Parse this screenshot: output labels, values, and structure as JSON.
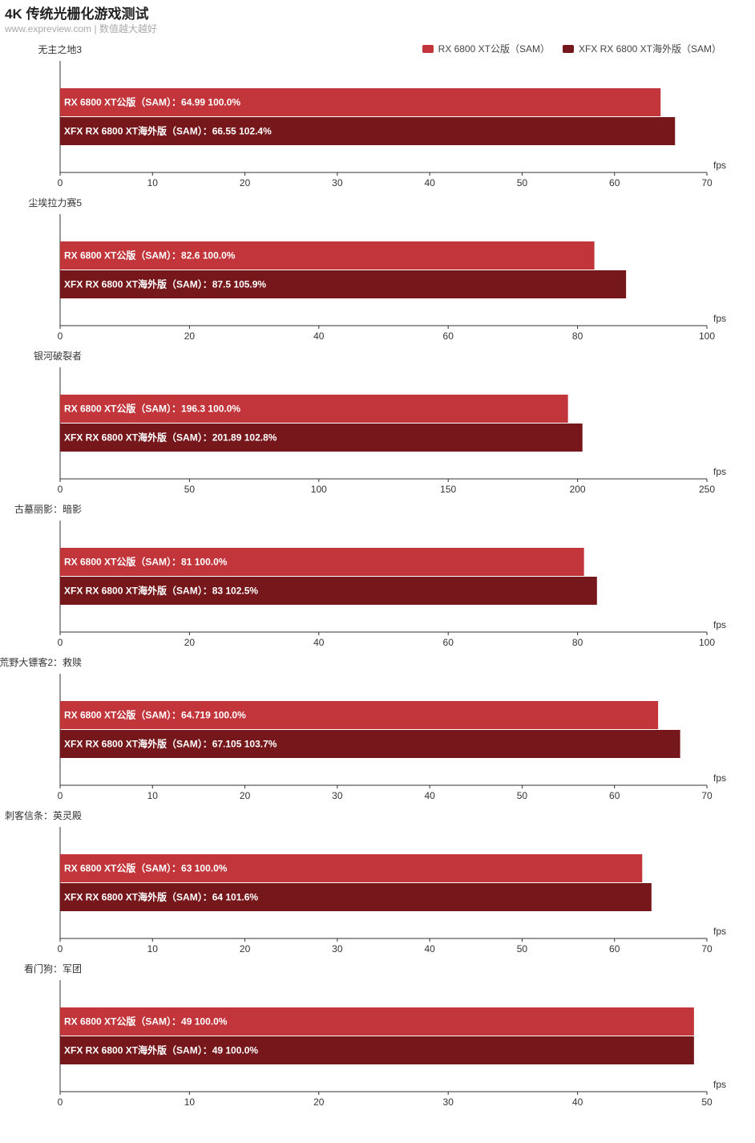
{
  "header": {
    "title": "4K 传统光栅化游戏测试",
    "subtitle": "www.expreview.com | 数值越大越好"
  },
  "legend": [
    {
      "label": "RX 6800 XT公版（SAM）",
      "color": "#c1353b"
    },
    {
      "label": "XFX RX 6800 XT海外版（SAM）",
      "color": "#76171b"
    }
  ],
  "chart_data": [
    {
      "type": "bar",
      "title": "无主之地3",
      "unit": "fps",
      "xlim": [
        0,
        70
      ],
      "ticks": [
        0,
        10,
        20,
        30,
        40,
        50,
        60,
        70
      ],
      "series": [
        {
          "name": "RX 6800 XT公版（SAM）",
          "value": 64.99,
          "label": "RX 6800 XT公版（SAM）：64.99  100.0%"
        },
        {
          "name": "XFX RX 6800 XT海外版（SAM）",
          "value": 66.55,
          "label": "XFX RX 6800 XT海外版（SAM）：66.55  102.4%"
        }
      ]
    },
    {
      "type": "bar",
      "title": "尘埃拉力赛5",
      "unit": "fps",
      "xlim": [
        0,
        100
      ],
      "ticks": [
        0,
        20,
        40,
        60,
        80,
        100
      ],
      "series": [
        {
          "name": "RX 6800 XT公版（SAM）",
          "value": 82.6,
          "label": "RX 6800 XT公版（SAM）：82.6  100.0%"
        },
        {
          "name": "XFX RX 6800 XT海外版（SAM）",
          "value": 87.5,
          "label": "XFX RX 6800 XT海外版（SAM）：87.5  105.9%"
        }
      ]
    },
    {
      "type": "bar",
      "title": "银河破裂者",
      "unit": "fps",
      "xlim": [
        0,
        250
      ],
      "ticks": [
        0,
        50,
        100,
        150,
        200,
        250
      ],
      "series": [
        {
          "name": "RX 6800 XT公版（SAM）",
          "value": 196.3,
          "label": "RX 6800 XT公版（SAM）：196.3  100.0%"
        },
        {
          "name": "XFX RX 6800 XT海外版（SAM）",
          "value": 201.89,
          "label": "XFX RX 6800 XT海外版（SAM）：201.89  102.8%"
        }
      ]
    },
    {
      "type": "bar",
      "title": "古墓丽影：暗影",
      "unit": "fps",
      "xlim": [
        0,
        100
      ],
      "ticks": [
        0,
        20,
        40,
        60,
        80,
        100
      ],
      "series": [
        {
          "name": "RX 6800 XT公版（SAM）",
          "value": 81,
          "label": "RX 6800 XT公版（SAM）：81  100.0%"
        },
        {
          "name": "XFX RX 6800 XT海外版（SAM）",
          "value": 83,
          "label": "XFX RX 6800 XT海外版（SAM）：83  102.5%"
        }
      ]
    },
    {
      "type": "bar",
      "title": "荒野大镖客2：救赎",
      "unit": "fps",
      "xlim": [
        0,
        70
      ],
      "ticks": [
        0,
        10,
        20,
        30,
        40,
        50,
        60,
        70
      ],
      "series": [
        {
          "name": "RX 6800 XT公版（SAM）",
          "value": 64.719,
          "label": "RX 6800 XT公版（SAM）：64.719  100.0%"
        },
        {
          "name": "XFX RX 6800 XT海外版（SAM）",
          "value": 67.105,
          "label": "XFX RX 6800 XT海外版（SAM）：67.105  103.7%"
        }
      ]
    },
    {
      "type": "bar",
      "title": "刺客信条：英灵殿",
      "unit": "fps",
      "xlim": [
        0,
        70
      ],
      "ticks": [
        0,
        10,
        20,
        30,
        40,
        50,
        60,
        70
      ],
      "series": [
        {
          "name": "RX 6800 XT公版（SAM）",
          "value": 63,
          "label": "RX 6800 XT公版（SAM）：63  100.0%"
        },
        {
          "name": "XFX RX 6800 XT海外版（SAM）",
          "value": 64,
          "label": "XFX RX 6800 XT海外版（SAM）：64  101.6%"
        }
      ]
    },
    {
      "type": "bar",
      "title": "看门狗：军团",
      "unit": "fps",
      "xlim": [
        0,
        50
      ],
      "ticks": [
        0,
        10,
        20,
        30,
        40,
        50
      ],
      "series": [
        {
          "name": "RX 6800 XT公版（SAM）",
          "value": 49,
          "label": "RX 6800 XT公版（SAM）：49  100.0%"
        },
        {
          "name": "XFX RX 6800 XT海外版（SAM）",
          "value": 49,
          "label": "XFX RX 6800 XT海外版（SAM）：49  100.0%"
        }
      ]
    }
  ]
}
